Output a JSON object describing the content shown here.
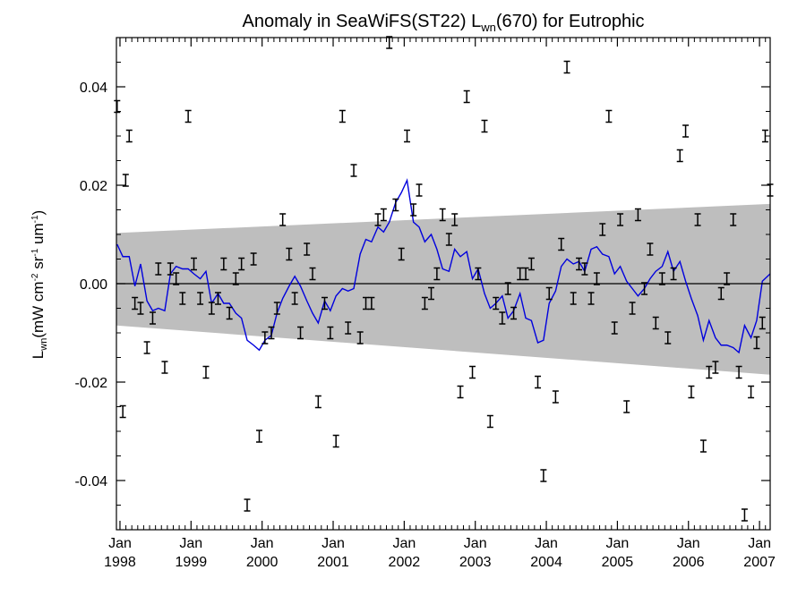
{
  "chart_data": {
    "type": "scatter",
    "title": "Anomaly in SeaWiFS(ST22) L",
    "title_sub": "wn",
    "title_tail": "(670) for Eutrophic",
    "ylabel": {
      "main": "L",
      "sub": "wn",
      "units": "(mW cm",
      "exp1": "-2",
      "sr": " sr",
      "exp2": "-1",
      "um": " um",
      "exp3": "-1",
      "close": ")"
    },
    "ylim": [
      -0.05,
      0.05
    ],
    "y_ticks": [
      -0.04,
      -0.02,
      0.0,
      0.02,
      0.04
    ],
    "y_tick_labels": [
      "-0.04",
      "-0.02",
      "0.00",
      "0.02",
      "0.04"
    ],
    "xlim": [
      1997.95,
      2007.15
    ],
    "x_ticks": [
      1998,
      1999,
      2000,
      2001,
      2002,
      2003,
      2004,
      2005,
      2006,
      2007
    ],
    "x_tick_month": "Jan",
    "x_tick_years": [
      "1998",
      "1999",
      "2000",
      "2001",
      "2002",
      "2003",
      "2004",
      "2005",
      "2006",
      "2007"
    ],
    "zero_line": 0,
    "band": {
      "start": [
        1997.95,
        -0.0085,
        0.0103
      ],
      "end": [
        2007.15,
        -0.0185,
        0.0162
      ]
    },
    "colors": {
      "line": "#0000dd",
      "band": "#bebebe",
      "points": "#000000"
    },
    "points": [
      [
        1997.96,
        0.036
      ],
      [
        1998.04,
        -0.026
      ],
      [
        1998.08,
        0.021
      ],
      [
        1998.13,
        0.03
      ],
      [
        1998.21,
        -0.004
      ],
      [
        1998.29,
        -0.005
      ],
      [
        1998.38,
        -0.013
      ],
      [
        1998.46,
        -0.007
      ],
      [
        1998.54,
        0.003
      ],
      [
        1998.63,
        -0.017
      ],
      [
        1998.71,
        0.003
      ],
      [
        1998.79,
        0.001
      ],
      [
        1998.88,
        -0.003
      ],
      [
        1998.96,
        0.034
      ],
      [
        1999.04,
        0.004
      ],
      [
        1999.13,
        -0.003
      ],
      [
        1999.21,
        -0.018
      ],
      [
        1999.29,
        -0.005
      ],
      [
        1999.38,
        -0.003
      ],
      [
        1999.46,
        0.004
      ],
      [
        1999.54,
        -0.006
      ],
      [
        1999.63,
        0.001
      ],
      [
        1999.71,
        0.004
      ],
      [
        1999.79,
        -0.045
      ],
      [
        1999.88,
        0.005
      ],
      [
        1999.96,
        -0.031
      ],
      [
        2000.04,
        -0.011
      ],
      [
        2000.13,
        -0.01
      ],
      [
        2000.21,
        -0.005
      ],
      [
        2000.29,
        0.013
      ],
      [
        2000.38,
        0.006
      ],
      [
        2000.46,
        -0.003
      ],
      [
        2000.54,
        -0.01
      ],
      [
        2000.63,
        0.007
      ],
      [
        2000.71,
        0.002
      ],
      [
        2000.79,
        -0.024
      ],
      [
        2000.88,
        -0.004
      ],
      [
        2000.96,
        -0.01
      ],
      [
        2001.04,
        -0.032
      ],
      [
        2001.13,
        0.034
      ],
      [
        2001.21,
        -0.009
      ],
      [
        2001.29,
        0.023
      ],
      [
        2001.38,
        -0.011
      ],
      [
        2001.46,
        -0.004
      ],
      [
        2001.54,
        -0.004
      ],
      [
        2001.63,
        0.013
      ],
      [
        2001.71,
        0.014
      ],
      [
        2001.79,
        0.049
      ],
      [
        2001.88,
        0.016
      ],
      [
        2001.96,
        0.006
      ],
      [
        2002.04,
        0.03
      ],
      [
        2002.13,
        0.015
      ],
      [
        2002.21,
        0.019
      ],
      [
        2002.29,
        -0.004
      ],
      [
        2002.38,
        -0.002
      ],
      [
        2002.46,
        0.002
      ],
      [
        2002.54,
        0.014
      ],
      [
        2002.63,
        0.009
      ],
      [
        2002.71,
        0.013
      ],
      [
        2002.79,
        -0.022
      ],
      [
        2002.88,
        0.038
      ],
      [
        2002.96,
        -0.018
      ],
      [
        2003.04,
        0.002
      ],
      [
        2003.13,
        0.032
      ],
      [
        2003.21,
        -0.028
      ],
      [
        2003.29,
        -0.004
      ],
      [
        2003.38,
        -0.007
      ],
      [
        2003.46,
        -0.001
      ],
      [
        2003.54,
        -0.006
      ],
      [
        2003.63,
        0.002
      ],
      [
        2003.71,
        0.002
      ],
      [
        2003.79,
        0.004
      ],
      [
        2003.88,
        -0.02
      ],
      [
        2003.96,
        -0.039
      ],
      [
        2004.04,
        -0.002
      ],
      [
        2004.13,
        -0.023
      ],
      [
        2004.21,
        0.008
      ],
      [
        2004.29,
        0.044
      ],
      [
        2004.38,
        -0.003
      ],
      [
        2004.46,
        0.004
      ],
      [
        2004.54,
        0.003
      ],
      [
        2004.63,
        -0.003
      ],
      [
        2004.71,
        0.001
      ],
      [
        2004.79,
        0.011
      ],
      [
        2004.88,
        0.034
      ],
      [
        2004.96,
        -0.009
      ],
      [
        2005.04,
        0.013
      ],
      [
        2005.13,
        -0.025
      ],
      [
        2005.21,
        -0.005
      ],
      [
        2005.29,
        0.014
      ],
      [
        2005.38,
        -0.001
      ],
      [
        2005.46,
        0.007
      ],
      [
        2005.54,
        -0.008
      ],
      [
        2005.63,
        0.001
      ],
      [
        2005.71,
        -0.011
      ],
      [
        2005.79,
        0.002
      ],
      [
        2005.88,
        0.026
      ],
      [
        2005.96,
        0.031
      ],
      [
        2006.04,
        -0.022
      ],
      [
        2006.13,
        0.013
      ],
      [
        2006.21,
        -0.033
      ],
      [
        2006.29,
        -0.018
      ],
      [
        2006.38,
        -0.017
      ],
      [
        2006.46,
        -0.002
      ],
      [
        2006.54,
        0.001
      ],
      [
        2006.63,
        0.013
      ],
      [
        2006.71,
        -0.018
      ],
      [
        2006.79,
        -0.047
      ],
      [
        2006.88,
        -0.022
      ],
      [
        2006.96,
        -0.012
      ],
      [
        2007.04,
        -0.008
      ],
      [
        2007.08,
        0.03
      ],
      [
        2007.15,
        0.019
      ]
    ],
    "line": [
      [
        1997.96,
        0.008
      ],
      [
        1998.04,
        0.0055
      ],
      [
        1998.13,
        0.0055
      ],
      [
        1998.21,
        -0.0005
      ],
      [
        1998.29,
        0.004
      ],
      [
        1998.38,
        -0.0035
      ],
      [
        1998.46,
        -0.0055
      ],
      [
        1998.54,
        -0.005
      ],
      [
        1998.63,
        -0.0055
      ],
      [
        1998.71,
        0.002
      ],
      [
        1998.79,
        0.0035
      ],
      [
        1998.88,
        0.003
      ],
      [
        1998.96,
        0.003
      ],
      [
        1999.04,
        0.002
      ],
      [
        1999.13,
        0.001
      ],
      [
        1999.21,
        0.0025
      ],
      [
        1999.29,
        -0.004
      ],
      [
        1999.38,
        -0.002
      ],
      [
        1999.46,
        -0.004
      ],
      [
        1999.54,
        -0.004
      ],
      [
        1999.63,
        -0.006
      ],
      [
        1999.71,
        -0.007
      ],
      [
        1999.79,
        -0.0115
      ],
      [
        1999.88,
        -0.0125
      ],
      [
        1999.96,
        -0.0135
      ],
      [
        2000.04,
        -0.0115
      ],
      [
        2000.13,
        -0.0105
      ],
      [
        2000.21,
        -0.006
      ],
      [
        2000.29,
        -0.003
      ],
      [
        2000.38,
        -0.0005
      ],
      [
        2000.46,
        0.0015
      ],
      [
        2000.54,
        -0.0005
      ],
      [
        2000.63,
        -0.0035
      ],
      [
        2000.71,
        -0.006
      ],
      [
        2000.79,
        -0.008
      ],
      [
        2000.88,
        -0.0035
      ],
      [
        2000.96,
        -0.0055
      ],
      [
        2001.04,
        -0.0025
      ],
      [
        2001.13,
        -0.001
      ],
      [
        2001.21,
        -0.0015
      ],
      [
        2001.29,
        -0.001
      ],
      [
        2001.38,
        0.006
      ],
      [
        2001.46,
        0.009
      ],
      [
        2001.54,
        0.0085
      ],
      [
        2001.63,
        0.0115
      ],
      [
        2001.71,
        0.0105
      ],
      [
        2001.79,
        0.0125
      ],
      [
        2001.88,
        0.0165
      ],
      [
        2001.96,
        0.0185
      ],
      [
        2002.04,
        0.021
      ],
      [
        2002.13,
        0.0125
      ],
      [
        2002.21,
        0.0115
      ],
      [
        2002.29,
        0.0085
      ],
      [
        2002.38,
        0.01
      ],
      [
        2002.46,
        0.007
      ],
      [
        2002.54,
        0.003
      ],
      [
        2002.63,
        0.0025
      ],
      [
        2002.71,
        0.007
      ],
      [
        2002.79,
        0.0055
      ],
      [
        2002.88,
        0.0065
      ],
      [
        2002.96,
        0.001
      ],
      [
        2003.04,
        0.003
      ],
      [
        2003.13,
        -0.002
      ],
      [
        2003.21,
        -0.005
      ],
      [
        2003.29,
        -0.004
      ],
      [
        2003.38,
        -0.0025
      ],
      [
        2003.46,
        -0.007
      ],
      [
        2003.54,
        -0.0055
      ],
      [
        2003.63,
        -0.002
      ],
      [
        2003.71,
        -0.007
      ],
      [
        2003.79,
        -0.0075
      ],
      [
        2003.88,
        -0.012
      ],
      [
        2003.96,
        -0.0115
      ],
      [
        2004.04,
        -0.004
      ],
      [
        2004.13,
        -0.0015
      ],
      [
        2004.21,
        0.0035
      ],
      [
        2004.29,
        0.005
      ],
      [
        2004.38,
        0.004
      ],
      [
        2004.46,
        0.0045
      ],
      [
        2004.54,
        0.0025
      ],
      [
        2004.63,
        0.007
      ],
      [
        2004.71,
        0.0075
      ],
      [
        2004.79,
        0.006
      ],
      [
        2004.88,
        0.0055
      ],
      [
        2004.96,
        0.002
      ],
      [
        2005.04,
        0.0035
      ],
      [
        2005.13,
        0.0005
      ],
      [
        2005.21,
        -0.001
      ],
      [
        2005.29,
        -0.0025
      ],
      [
        2005.38,
        -0.001
      ],
      [
        2005.46,
        0.001
      ],
      [
        2005.54,
        0.0025
      ],
      [
        2005.63,
        0.0035
      ],
      [
        2005.71,
        0.0065
      ],
      [
        2005.79,
        0.0025
      ],
      [
        2005.88,
        0.0045
      ],
      [
        2005.96,
        0.0005
      ],
      [
        2006.04,
        -0.003
      ],
      [
        2006.13,
        -0.0065
      ],
      [
        2006.21,
        -0.0115
      ],
      [
        2006.29,
        -0.0075
      ],
      [
        2006.38,
        -0.011
      ],
      [
        2006.46,
        -0.0125
      ],
      [
        2006.54,
        -0.0125
      ],
      [
        2006.63,
        -0.013
      ],
      [
        2006.71,
        -0.014
      ],
      [
        2006.79,
        -0.0085
      ],
      [
        2006.88,
        -0.011
      ],
      [
        2006.96,
        -0.0075
      ],
      [
        2007.04,
        0.0005
      ],
      [
        2007.15,
        0.002
      ]
    ]
  }
}
